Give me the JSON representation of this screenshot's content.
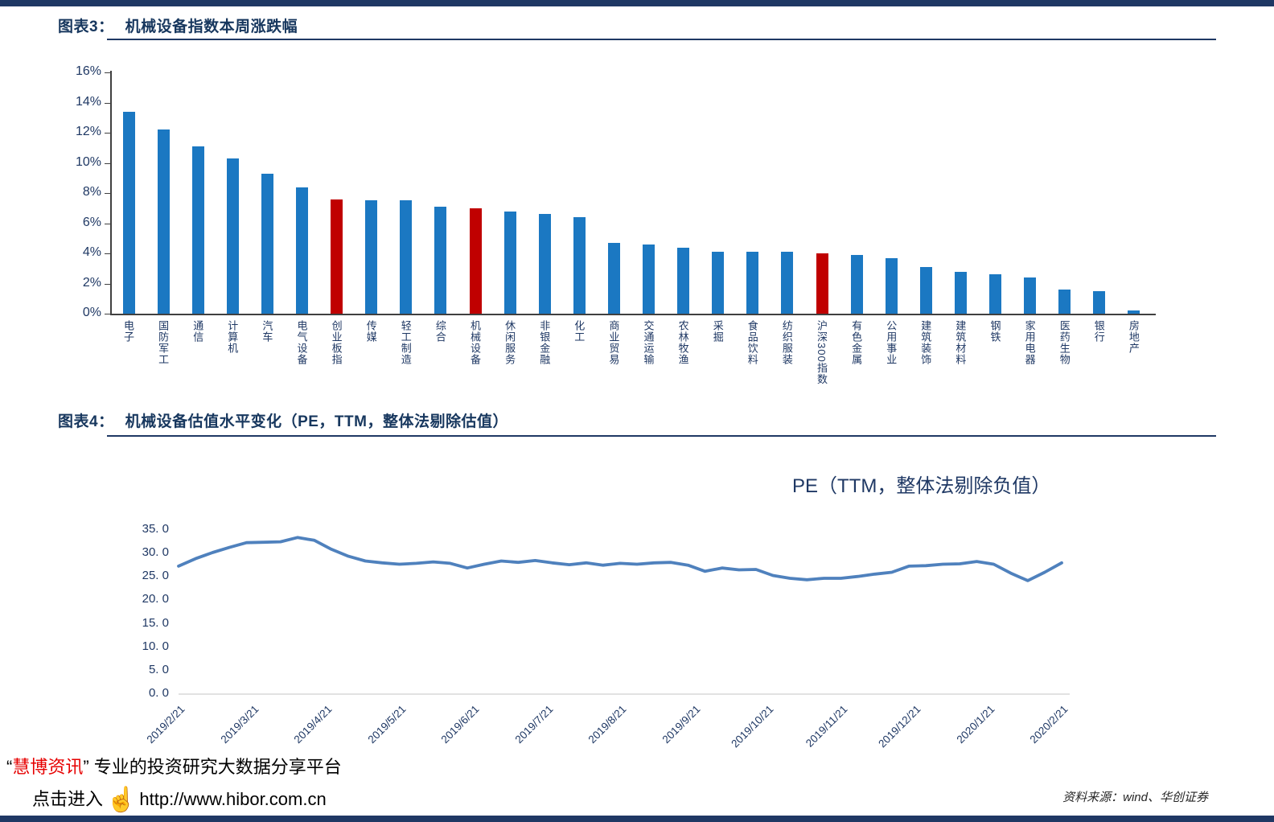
{
  "figure3": {
    "title_label": "图表3：",
    "title_text": "机械设备指数本周涨跌幅"
  },
  "figure4": {
    "title_label": "图表4：",
    "title_text": "机械设备估值水平变化（PE，TTM，整体法剔除估值）",
    "plot_title": "PE（TTM，整体法剔除负值）"
  },
  "footer": {
    "quote_open": "“",
    "brand": "慧博资讯",
    "quote_close": "”",
    "tagline": "专业的投资研究大数据分享平台",
    "cta": "点击进入",
    "hand_icon": "☝",
    "url": "http://www.hibor.com.cn",
    "source_note": "资料来源：wind、华创证券"
  },
  "colors": {
    "navy": "#1F3864",
    "bar_blue": "#1B78C2",
    "bar_red": "#C00000",
    "line_blue": "#4F81BD",
    "baseline_gray": "#D9D9D9"
  },
  "chart_data": [
    {
      "type": "bar",
      "title": "机械设备指数本周涨跌幅",
      "unit": "%",
      "categories": [
        "电子",
        "国防军工",
        "通信",
        "计算机",
        "汽车",
        "电气设备",
        "创业板指",
        "传媒",
        "轻工制造",
        "综合",
        "机械设备",
        "休闲服务",
        "非银金融",
        "化工",
        "商业贸易",
        "交通运输",
        "农林牧渔",
        "采掘",
        "食品饮料",
        "纺织服装",
        "沪深300指数",
        "有色金属",
        "公用事业",
        "建筑装饰",
        "建筑材料",
        "钢铁",
        "家用电器",
        "医药生物",
        "银行",
        "房地产"
      ],
      "values": [
        13.4,
        12.2,
        11.1,
        10.3,
        9.3,
        8.4,
        7.6,
        7.5,
        7.5,
        7.1,
        7.0,
        6.8,
        6.6,
        6.4,
        4.7,
        4.6,
        4.4,
        4.1,
        4.1,
        4.1,
        4.0,
        3.9,
        3.7,
        3.1,
        2.8,
        2.6,
        2.4,
        1.6,
        1.5,
        0.2
      ],
      "highlight_indices": [
        6,
        10,
        20
      ],
      "ylim": [
        0,
        16
      ],
      "ytick_step": 2,
      "ytick_labels": [
        "0%",
        "2%",
        "4%",
        "6%",
        "8%",
        "10%",
        "12%",
        "14%",
        "16%"
      ],
      "legend": "none",
      "grid": false
    },
    {
      "type": "line",
      "title": "PE（TTM，整体法剔除负值）",
      "x_tick_labels": [
        "2019/2/21",
        "2019/3/21",
        "2019/4/21",
        "2019/5/21",
        "2019/6/21",
        "2019/7/21",
        "2019/8/21",
        "2019/9/21",
        "2019/10/21",
        "2019/11/21",
        "2019/12/21",
        "2020/1/21",
        "2020/2/21"
      ],
      "values": [
        27.3,
        28.9,
        30.2,
        31.3,
        32.3,
        32.4,
        32.5,
        33.4,
        32.8,
        30.9,
        29.4,
        28.4,
        28.0,
        27.7,
        27.9,
        28.2,
        27.9,
        26.9,
        27.7,
        28.4,
        28.1,
        28.5,
        28.0,
        27.6,
        28.0,
        27.5,
        27.9,
        27.7,
        28.0,
        28.1,
        27.5,
        26.2,
        26.9,
        26.5,
        26.6,
        25.3,
        24.7,
        24.4,
        24.7,
        24.7,
        25.1,
        25.6,
        26.0,
        27.3,
        27.4,
        27.7,
        27.8,
        28.3,
        27.7,
        25.8,
        24.2,
        26.0,
        28.0
      ],
      "ylim": [
        0,
        35
      ],
      "ytick_step": 5,
      "ytick_labels": [
        "0. 0",
        "5. 0",
        "10. 0",
        "15. 0",
        "20. 0",
        "25. 0",
        "30. 0",
        "35. 0"
      ],
      "legend": "none",
      "grid": false
    }
  ]
}
